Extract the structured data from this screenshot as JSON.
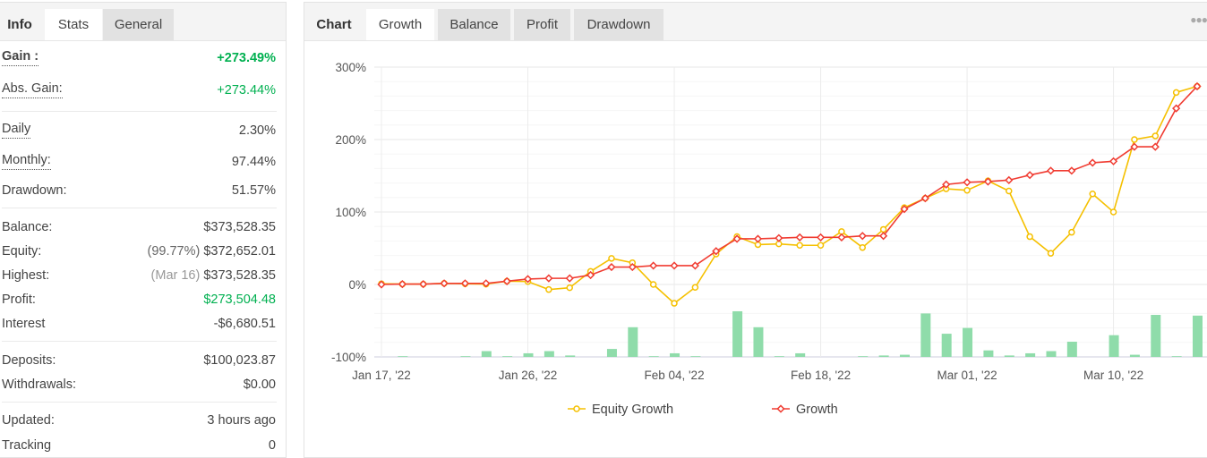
{
  "left_panel": {
    "tabs": {
      "info": "Info",
      "stats": "Stats",
      "general": "General"
    },
    "stats": {
      "gain": {
        "label": "Gain :",
        "value": "+273.49%"
      },
      "abs_gain": {
        "label": "Abs. Gain:",
        "value": "+273.44%"
      },
      "daily": {
        "label": "Daily",
        "value": "2.30%"
      },
      "monthly": {
        "label": "Monthly:",
        "value": "97.44%"
      },
      "drawdown": {
        "label": "Drawdown:",
        "value": "51.57%"
      },
      "balance": {
        "label": "Balance:",
        "value": "$373,528.35"
      },
      "equity": {
        "label": "Equity:",
        "note": "(99.77%)",
        "value": "$372,652.01"
      },
      "highest": {
        "label": "Highest:",
        "note": "(Mar 16)",
        "value": "$373,528.35"
      },
      "profit": {
        "label": "Profit:",
        "value": "$273,504.48"
      },
      "interest": {
        "label": "Interest",
        "value": "-$6,680.51"
      },
      "deposits": {
        "label": "Deposits:",
        "value": "$100,023.87"
      },
      "withdrawals": {
        "label": "Withdrawals:",
        "value": "$0.00"
      },
      "updated": {
        "label": "Updated:",
        "value": "3 hours ago"
      },
      "tracking": {
        "label": "Tracking",
        "value": "0"
      }
    }
  },
  "right_panel": {
    "tabs": {
      "chart": "Chart",
      "growth": "Growth",
      "balance": "Balance",
      "profit": "Profit",
      "drawdown": "Drawdown"
    },
    "menu_icon": "more-dots-icon"
  },
  "colors": {
    "positive": "#00b050",
    "equity": "#f5c000",
    "growth": "#f03c32",
    "bars": "#8fdcaa"
  },
  "chart_data": {
    "type": "line",
    "x_tick_labels": [
      "Jan 17, '22",
      "Jan 26, '22",
      "Feb 04, '22",
      "Feb 18, '22",
      "Mar 01, '22",
      "Mar 10, '22"
    ],
    "x_tick_indices": [
      0,
      7,
      14,
      21,
      28,
      35
    ],
    "y_tick_labels": [
      "300%",
      "200%",
      "100%",
      "0%",
      "-100%"
    ],
    "ylim": [
      -100,
      300
    ],
    "grid": true,
    "legend": "bottom",
    "series": [
      {
        "name": "Equity Growth",
        "color": "#f5c000",
        "marker": "circle",
        "values": [
          1,
          0.5,
          0.5,
          1.5,
          1,
          0.5,
          4.5,
          4,
          -7,
          -4.5,
          18,
          36,
          30,
          0,
          -26,
          -4,
          42,
          66,
          55,
          56,
          54,
          54,
          73,
          51,
          76,
          106,
          119,
          132,
          130,
          143,
          129,
          66,
          43,
          72,
          125,
          100,
          200,
          205,
          265,
          273.44
        ]
      },
      {
        "name": "Growth",
        "color": "#f03c32",
        "marker": "diamond",
        "values": [
          0,
          0.5,
          0.5,
          1.5,
          1.5,
          1.5,
          4.5,
          7.5,
          8.5,
          8.5,
          13,
          24,
          24,
          26,
          26,
          26,
          46,
          63,
          63,
          64,
          65,
          65,
          65,
          67,
          67,
          104,
          119,
          138,
          141,
          142,
          144,
          151,
          157,
          157,
          168,
          170,
          190,
          190,
          243,
          273.49
        ]
      },
      {
        "type": "bar",
        "color": "#8fdcaa",
        "baseline": -100,
        "values": [
          0,
          1,
          0,
          0,
          1,
          8,
          1,
          5,
          8,
          2,
          0,
          11,
          41,
          1,
          5,
          1,
          0,
          63,
          41,
          1,
          5,
          0,
          0,
          1,
          2,
          3,
          60,
          32,
          40,
          9,
          2,
          5,
          8,
          21,
          0,
          30,
          3,
          58,
          1,
          57
        ]
      }
    ]
  }
}
